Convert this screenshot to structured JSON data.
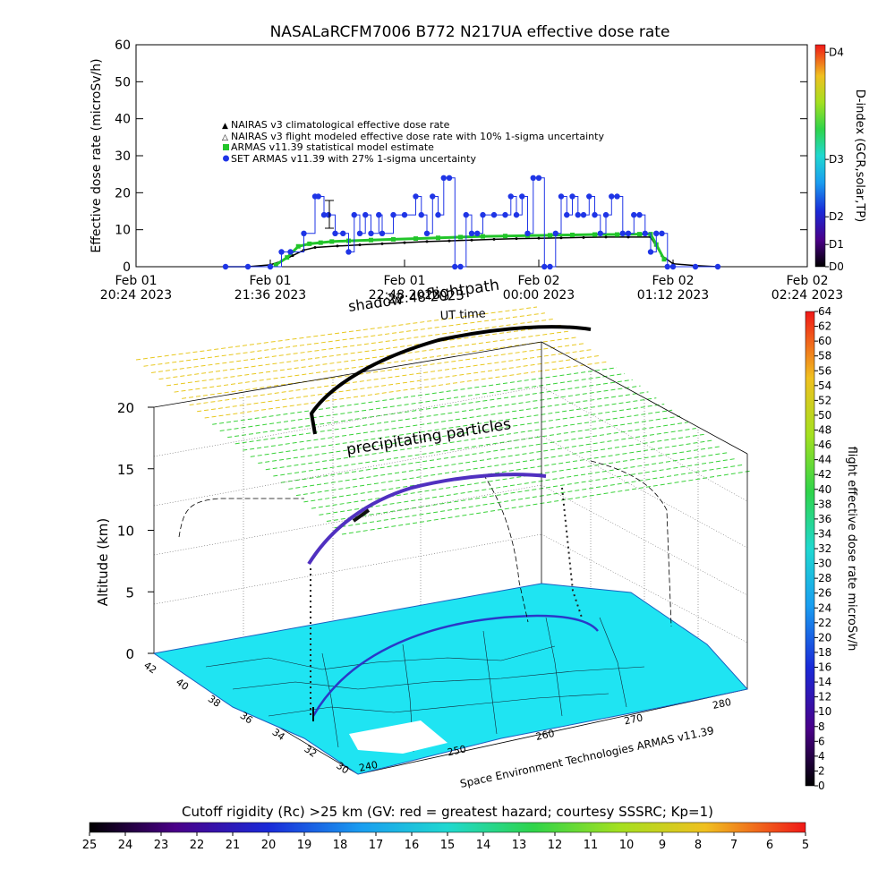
{
  "colors": {
    "armas": "#22c52a",
    "set_armas": "#1f35e6",
    "nairas_climo": "#f08080",
    "nairas_flight": "#000000",
    "map_fill": "#1fe4f2",
    "ground_track": "#2a38c8",
    "precip_grid_top": "#e8c820",
    "precip_grid_bottom": "#3ad23a"
  },
  "chart_data": [
    {
      "type": "line",
      "title": "NASALaRCFM7006  B772 N217UA effective dose rate",
      "ylabel": "Effective dose rate (microSv/h)",
      "ylim": [
        0,
        60
      ],
      "yticks": [
        "0",
        "10",
        "20",
        "30",
        "40",
        "50",
        "60"
      ],
      "xlim_hours": [
        0,
        6
      ],
      "xtick_labels": [
        {
          "line1": "Feb 01",
          "line2": "20:24 2023"
        },
        {
          "line1": "Feb 01",
          "line2": "21:36 2023"
        },
        {
          "line1": "Feb 01",
          "line2": "22:48 2023"
        },
        {
          "line1": "Feb 02",
          "line2": "00:00 2023"
        },
        {
          "line1": "Feb 02",
          "line2": "01:12 2023"
        },
        {
          "line1": "Feb 02",
          "line2": "02:24 2023"
        }
      ],
      "legend": [
        "NAIRAS v3 climatological effective dose rate",
        "NAIRAS v3 flight modeled effective dose rate with 10% 1-sigma uncertainty",
        "ARMAS v11.39 statistical model estimate",
        "SET ARMAS v11.39 with 27% 1-sigma uncertainty"
      ],
      "right_axis": {
        "label": "D-index (GCR,solar,TP)",
        "ticks": [
          "D0",
          "D1",
          "D2",
          "D3",
          "D4"
        ],
        "tick_values": [
          0,
          6,
          13.5,
          29,
          58
        ]
      },
      "series": [
        {
          "name": "ARMAS v11.39 statistical model estimate",
          "x": [
            1.25,
            1.35,
            1.45,
            1.55,
            1.65,
            1.75,
            1.9,
            2.1,
            2.3,
            2.5,
            2.7,
            2.9,
            3.1,
            3.3,
            3.5,
            3.7,
            3.9,
            4.1,
            4.3,
            4.5,
            4.6,
            4.65,
            4.72
          ],
          "values": [
            0.5,
            2.5,
            5.5,
            6.2,
            6.5,
            6.8,
            7.0,
            7.2,
            7.4,
            7.6,
            7.8,
            8.0,
            8.2,
            8.3,
            8.4,
            8.5,
            8.6,
            8.7,
            8.7,
            8.8,
            8.8,
            6.0,
            2.0
          ]
        },
        {
          "name": "NAIRAS v3 flight modeled effective dose rate with 10% 1-sigma uncertainty",
          "x": [
            0.8,
            1.0,
            1.2,
            1.3,
            1.4,
            1.5,
            1.6,
            1.8,
            2.0,
            2.2,
            2.4,
            2.6,
            2.8,
            3.0,
            3.2,
            3.4,
            3.6,
            3.8,
            4.0,
            4.2,
            4.4,
            4.6,
            4.7,
            4.8,
            5.0,
            5.2
          ],
          "values": [
            0,
            0,
            0.5,
            1.5,
            3.0,
            4.5,
            5.2,
            5.6,
            5.9,
            6.2,
            6.5,
            6.8,
            7.0,
            7.2,
            7.4,
            7.6,
            7.7,
            7.8,
            7.9,
            8.0,
            8.0,
            8.0,
            3.0,
            0.8,
            0.3,
            0
          ]
        },
        {
          "name": "SET ARMAS v11.39 with 27% 1-sigma uncertainty",
          "x": [
            0.8,
            1.0,
            1.2,
            1.3,
            1.38,
            1.5,
            1.6,
            1.63,
            1.68,
            1.72,
            1.78,
            1.85,
            1.9,
            1.95,
            2.0,
            2.05,
            2.1,
            2.17,
            2.2,
            2.3,
            2.4,
            2.5,
            2.55,
            2.6,
            2.65,
            2.7,
            2.75,
            2.8,
            2.85,
            2.9,
            2.95,
            3.0,
            3.05,
            3.1,
            3.2,
            3.3,
            3.35,
            3.4,
            3.45,
            3.5,
            3.55,
            3.6,
            3.65,
            3.7,
            3.75,
            3.8,
            3.85,
            3.9,
            3.95,
            4.0,
            4.05,
            4.1,
            4.15,
            4.2,
            4.25,
            4.3,
            4.35,
            4.4,
            4.45,
            4.5,
            4.55,
            4.6,
            4.65,
            4.7,
            4.75,
            4.8,
            5.0,
            5.2
          ],
          "values": [
            0,
            0,
            0,
            4,
            4,
            9,
            19,
            19,
            14,
            14,
            9,
            9,
            4,
            14,
            9,
            14,
            9,
            14,
            9,
            14,
            14,
            19,
            14,
            9,
            19,
            14,
            24,
            24,
            0,
            0,
            14,
            9,
            9,
            14,
            14,
            14,
            19,
            14,
            19,
            9,
            24,
            24,
            0,
            0,
            9,
            19,
            14,
            19,
            14,
            14,
            19,
            14,
            9,
            14,
            19,
            19,
            9,
            9,
            14,
            14,
            9,
            4,
            9,
            9,
            0,
            0,
            0,
            0
          ]
        }
      ]
    },
    {
      "type": "scatter",
      "subtype": "3d-flight-track",
      "zlabel": "Altitude (km)",
      "zticks": [
        "0",
        "5",
        "10",
        "15",
        "20"
      ],
      "lat_ticks": [
        "42",
        "40",
        "38",
        "36",
        "34",
        "32",
        "30"
      ],
      "lon_ticks": [
        "240",
        "250",
        "260",
        "270",
        "280"
      ],
      "labels": {
        "shadow": "shadow",
        "flightpath": "flightpath",
        "ut_time": "UT time",
        "precip": "precipitating particles",
        "credit": "Space Environment Technologies ARMAS v11.39",
        "repeat_time": "22:48 2023"
      },
      "colorbar": {
        "label": "flight effective dose rate microSv/h",
        "ticks": [
          "0",
          "2",
          "4",
          "6",
          "8",
          "10",
          "12",
          "14",
          "16",
          "18",
          "20",
          "22",
          "24",
          "26",
          "28",
          "30",
          "32",
          "34",
          "36",
          "38",
          "40",
          "42",
          "44",
          "46",
          "48",
          "50",
          "52",
          "54",
          "56",
          "58",
          "60",
          "62",
          "64"
        ],
        "range": [
          0,
          64
        ]
      }
    },
    {
      "type": "heatmap",
      "subtype": "colorbar",
      "label": "Cutoff rigidity (Rc) >25 km (GV: red = greatest hazard; courtesy SSSRC; Kp=1)",
      "ticks": [
        "25",
        "24",
        "23",
        "22",
        "21",
        "20",
        "19",
        "18",
        "17",
        "16",
        "15",
        "14",
        "13",
        "12",
        "11",
        "10",
        "9",
        "8",
        "7",
        "6",
        "5"
      ],
      "range": [
        25,
        5
      ]
    }
  ]
}
